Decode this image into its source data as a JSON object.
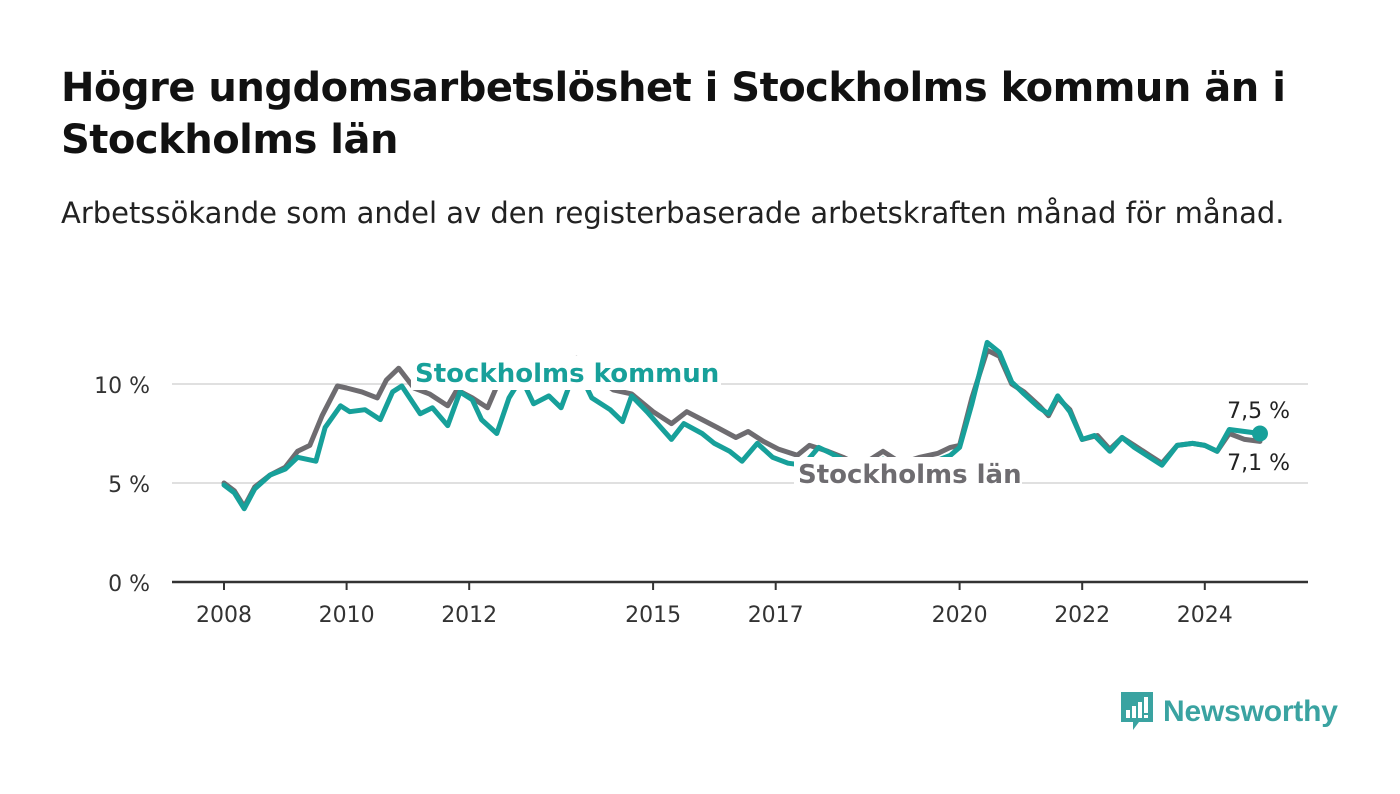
{
  "title": "Högre ungdomsarbetslöshet i Stockholms kommun än i Stockholms län",
  "subtitle": "Arbetssökande som andel av den registerbaserade arbetskraften månad för månad.",
  "logo": {
    "text": "Newsworthy",
    "icon": "bar-chart-speech-bubble-icon",
    "color": "#3aa3a1"
  },
  "chart_data": {
    "type": "line",
    "ylim": [
      0,
      13
    ],
    "y_ticks": [
      0,
      5,
      10
    ],
    "y_tick_labels": [
      "0 %",
      "5 %",
      "10 %"
    ],
    "x_ticks": [
      2008,
      2010,
      2012,
      2015,
      2017,
      2020,
      2022,
      2024
    ],
    "x_tick_labels": [
      "2008",
      "2010",
      "2012",
      "2015",
      "2017",
      "2020",
      "2022",
      "2024"
    ],
    "grid": true,
    "series": [
      {
        "name": "Stockholms län",
        "color": "#6e6c70",
        "end_label": "7,1 %",
        "points": [
          [
            2008.0,
            5.0
          ],
          [
            2008.17,
            4.6
          ],
          [
            2008.33,
            3.8
          ],
          [
            2008.5,
            4.8
          ],
          [
            2008.75,
            5.4
          ],
          [
            2009.0,
            5.8
          ],
          [
            2009.2,
            6.6
          ],
          [
            2009.4,
            6.9
          ],
          [
            2009.6,
            8.4
          ],
          [
            2009.85,
            9.9
          ],
          [
            2010.0,
            9.8
          ],
          [
            2010.25,
            9.6
          ],
          [
            2010.5,
            9.3
          ],
          [
            2010.65,
            10.2
          ],
          [
            2010.85,
            10.8
          ],
          [
            2011.1,
            9.8
          ],
          [
            2011.35,
            9.5
          ],
          [
            2011.65,
            8.9
          ],
          [
            2011.8,
            9.7
          ],
          [
            2012.05,
            9.3
          ],
          [
            2012.3,
            8.8
          ],
          [
            2012.55,
            10.6
          ],
          [
            2012.8,
            11.1
          ],
          [
            2013.05,
            10.5
          ],
          [
            2013.3,
            10.2
          ],
          [
            2013.55,
            10.9
          ],
          [
            2013.75,
            11.3
          ],
          [
            2014.0,
            10.5
          ],
          [
            2014.35,
            9.7
          ],
          [
            2014.65,
            9.5
          ],
          [
            2015.0,
            8.6
          ],
          [
            2015.3,
            8.0
          ],
          [
            2015.55,
            8.6
          ],
          [
            2015.8,
            8.2
          ],
          [
            2016.05,
            7.8
          ],
          [
            2016.35,
            7.3
          ],
          [
            2016.55,
            7.6
          ],
          [
            2016.8,
            7.1
          ],
          [
            2017.05,
            6.7
          ],
          [
            2017.35,
            6.4
          ],
          [
            2017.55,
            6.9
          ],
          [
            2017.85,
            6.6
          ],
          [
            2018.1,
            6.3
          ],
          [
            2018.3,
            6.0
          ],
          [
            2018.5,
            6.1
          ],
          [
            2018.75,
            6.6
          ],
          [
            2019.05,
            6.0
          ],
          [
            2019.35,
            6.3
          ],
          [
            2019.65,
            6.5
          ],
          [
            2019.85,
            6.8
          ],
          [
            2020.0,
            6.9
          ],
          [
            2020.2,
            9.3
          ],
          [
            2020.45,
            11.7
          ],
          [
            2020.65,
            11.4
          ],
          [
            2020.85,
            10.0
          ],
          [
            2021.05,
            9.6
          ],
          [
            2021.3,
            8.9
          ],
          [
            2021.45,
            8.4
          ],
          [
            2021.6,
            9.3
          ],
          [
            2021.8,
            8.7
          ],
          [
            2022.0,
            7.2
          ],
          [
            2022.25,
            7.4
          ],
          [
            2022.45,
            6.7
          ],
          [
            2022.65,
            7.3
          ],
          [
            2022.85,
            6.9
          ],
          [
            2023.1,
            6.4
          ],
          [
            2023.3,
            6.0
          ],
          [
            2023.55,
            6.9
          ],
          [
            2023.8,
            7.0
          ],
          [
            2024.0,
            6.9
          ],
          [
            2024.2,
            6.6
          ],
          [
            2024.4,
            7.5
          ],
          [
            2024.65,
            7.2
          ],
          [
            2024.9,
            7.1
          ]
        ]
      },
      {
        "name": "Stockholms kommun",
        "color": "#17a09a",
        "end_label": "7,5 %",
        "points": [
          [
            2008.0,
            4.9
          ],
          [
            2008.17,
            4.5
          ],
          [
            2008.33,
            3.7
          ],
          [
            2008.5,
            4.7
          ],
          [
            2008.75,
            5.4
          ],
          [
            2009.0,
            5.7
          ],
          [
            2009.2,
            6.3
          ],
          [
            2009.5,
            6.1
          ],
          [
            2009.65,
            7.8
          ],
          [
            2009.9,
            8.9
          ],
          [
            2010.05,
            8.6
          ],
          [
            2010.3,
            8.7
          ],
          [
            2010.55,
            8.2
          ],
          [
            2010.75,
            9.6
          ],
          [
            2010.9,
            9.9
          ],
          [
            2011.2,
            8.5
          ],
          [
            2011.4,
            8.8
          ],
          [
            2011.65,
            7.9
          ],
          [
            2011.85,
            9.6
          ],
          [
            2012.05,
            9.2
          ],
          [
            2012.2,
            8.2
          ],
          [
            2012.45,
            7.5
          ],
          [
            2012.65,
            9.3
          ],
          [
            2012.85,
            10.3
          ],
          [
            2013.05,
            9.0
          ],
          [
            2013.3,
            9.4
          ],
          [
            2013.5,
            8.8
          ],
          [
            2013.75,
            10.9
          ],
          [
            2014.0,
            9.3
          ],
          [
            2014.3,
            8.7
          ],
          [
            2014.5,
            8.1
          ],
          [
            2014.65,
            9.4
          ],
          [
            2014.9,
            8.6
          ],
          [
            2015.1,
            7.9
          ],
          [
            2015.3,
            7.2
          ],
          [
            2015.5,
            8.0
          ],
          [
            2015.8,
            7.5
          ],
          [
            2016.0,
            7.0
          ],
          [
            2016.25,
            6.6
          ],
          [
            2016.45,
            6.1
          ],
          [
            2016.7,
            7.0
          ],
          [
            2016.95,
            6.3
          ],
          [
            2017.2,
            6.0
          ],
          [
            2017.45,
            5.9
          ],
          [
            2017.7,
            6.8
          ],
          [
            2017.9,
            6.5
          ],
          [
            2018.15,
            6.1
          ],
          [
            2018.3,
            5.8
          ],
          [
            2018.5,
            5.5
          ],
          [
            2018.75,
            6.2
          ],
          [
            2019.0,
            5.6
          ],
          [
            2019.3,
            5.9
          ],
          [
            2019.6,
            6.1
          ],
          [
            2019.85,
            6.4
          ],
          [
            2020.0,
            6.8
          ],
          [
            2020.2,
            9.0
          ],
          [
            2020.45,
            12.1
          ],
          [
            2020.65,
            11.6
          ],
          [
            2020.85,
            10.1
          ],
          [
            2021.05,
            9.5
          ],
          [
            2021.3,
            8.8
          ],
          [
            2021.45,
            8.5
          ],
          [
            2021.6,
            9.4
          ],
          [
            2021.8,
            8.6
          ],
          [
            2022.0,
            7.2
          ],
          [
            2022.2,
            7.4
          ],
          [
            2022.45,
            6.6
          ],
          [
            2022.65,
            7.3
          ],
          [
            2022.85,
            6.8
          ],
          [
            2023.1,
            6.3
          ],
          [
            2023.3,
            5.9
          ],
          [
            2023.55,
            6.9
          ],
          [
            2023.8,
            7.0
          ],
          [
            2024.0,
            6.9
          ],
          [
            2024.2,
            6.6
          ],
          [
            2024.4,
            7.7
          ],
          [
            2024.65,
            7.6
          ],
          [
            2024.9,
            7.5
          ]
        ]
      }
    ],
    "annotations": [
      {
        "text": "Stockholms kommun",
        "series": "Stockholms kommun",
        "color": "#17a09a"
      },
      {
        "text": "Stockholms län",
        "series": "Stockholms län",
        "color": "#6e6c70"
      }
    ]
  }
}
